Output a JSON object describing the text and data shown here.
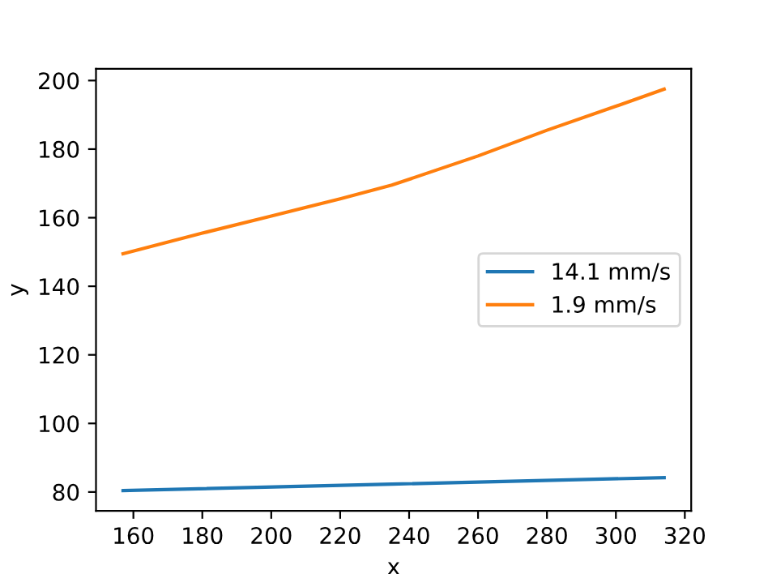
{
  "chart_data": {
    "type": "line",
    "xlabel": "x",
    "ylabel": "y",
    "xlim": [
      149.15,
      321.85
    ],
    "ylim": [
      74.5,
      203.4
    ],
    "xticks": [
      160,
      180,
      200,
      220,
      240,
      260,
      280,
      300,
      320
    ],
    "yticks": [
      80,
      100,
      120,
      140,
      160,
      180,
      200
    ],
    "grid": false,
    "legend": "center right",
    "series": [
      {
        "name": "14.1 mm/s",
        "color": "#1f77b4",
        "x": [
          157,
          235,
          314
        ],
        "values": [
          80.4,
          82.3,
          84.2
        ]
      },
      {
        "name": "1.9 mm/s",
        "color": "#ff7f0e",
        "x": [
          157,
          180,
          200,
          220,
          235,
          260,
          280,
          300,
          314
        ],
        "values": [
          149.5,
          155.5,
          160.5,
          165.5,
          169.5,
          178,
          185.5,
          192.5,
          197.5
        ]
      }
    ]
  }
}
